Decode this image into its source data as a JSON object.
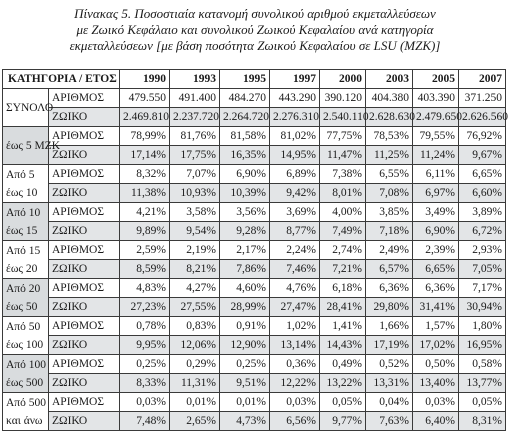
{
  "caption": {
    "line1": "Πίνακας 5. Ποσοστιαία κατανομή συνολικού αριθμού εκμεταλλεύσεων",
    "line2": "με Ζωικό Κεφάλαιο και συνολικού Ζωικού Κεφαλαίου ανά κατηγορία",
    "line3": "εκμεταλλεύσεων [με βάση ποσότητα Ζωικού Κεφαλαίου σε LSU (ΜΖΚ)]"
  },
  "table": {
    "header": [
      "ΚΑΤΗΓΟΡΙΑ / ΕΤΟΣ",
      "1990",
      "1993",
      "1995",
      "1997",
      "2000",
      "2003",
      "2005",
      "2007"
    ],
    "groups": [
      {
        "category": [
          "ΣΥΝΟΛΟ"
        ],
        "shade": false,
        "rows": [
          {
            "label": "ΑΡΙΘΜΟΣ",
            "values": [
              "479.550",
              "491.400",
              "484.270",
              "443.290",
              "390.120",
              "404.380",
              "403.390",
              "371.250"
            ]
          },
          {
            "label": "ΖΩΙΚΟ",
            "values": [
              "2.469.810",
              "2.237.720",
              "2.264.720",
              "2.276.310",
              "2.540.110",
              "2.628.630",
              "2.479.650",
              "2.626.560"
            ]
          }
        ]
      },
      {
        "category": [
          "έως 5 ΜΖΚ"
        ],
        "shade": true,
        "rows": [
          {
            "label": "ΑΡΙΘΜΟΣ",
            "values": [
              "78,99%",
              "81,76%",
              "81,58%",
              "81,02%",
              "77,75%",
              "78,53%",
              "79,55%",
              "76,92%"
            ]
          },
          {
            "label": "ΖΩΙΚΟ",
            "values": [
              "17,14%",
              "17,75%",
              "16,35%",
              "14,95%",
              "11,47%",
              "11,25%",
              "11,24%",
              "9,67%"
            ]
          }
        ]
      },
      {
        "category": [
          "Από 5",
          "έως 10"
        ],
        "shade": false,
        "rows": [
          {
            "label": "ΑΡΙΘΜΟΣ",
            "values": [
              "8,32%",
              "7,07%",
              "6,90%",
              "6,89%",
              "7,38%",
              "6,55%",
              "6,11%",
              "6,65%"
            ]
          },
          {
            "label": "ΖΩΙΚΟ",
            "values": [
              "11,38%",
              "10,93%",
              "10,39%",
              "9,42%",
              "8,01%",
              "7,08%",
              "6,97%",
              "6,60%"
            ]
          }
        ]
      },
      {
        "category": [
          "Από 10",
          "έως 15"
        ],
        "shade": true,
        "rows": [
          {
            "label": "ΑΡΙΘΜΟΣ",
            "values": [
              "4,21%",
              "3,58%",
              "3,56%",
              "3,69%",
              "4,00%",
              "3,85%",
              "3,49%",
              "3,89%"
            ]
          },
          {
            "label": "ΖΩΙΚΟ",
            "values": [
              "9,89%",
              "9,54%",
              "9,28%",
              "8,77%",
              "7,49%",
              "7,18%",
              "6,90%",
              "6,72%"
            ]
          }
        ]
      },
      {
        "category": [
          "Από 15",
          "έως 20"
        ],
        "shade": false,
        "rows": [
          {
            "label": "ΑΡΙΘΜΟΣ",
            "values": [
              "2,59%",
              "2,19%",
              "2,17%",
              "2,24%",
              "2,74%",
              "2,49%",
              "2,39%",
              "2,93%"
            ]
          },
          {
            "label": "ΖΩΙΚΟ",
            "values": [
              "8,59%",
              "8,21%",
              "7,86%",
              "7,46%",
              "7,21%",
              "6,57%",
              "6,65%",
              "7,05%"
            ]
          }
        ]
      },
      {
        "category": [
          "Από 20",
          "έως 50"
        ],
        "shade": true,
        "rows": [
          {
            "label": "ΑΡΙΘΜΟΣ",
            "values": [
              "4,83%",
              "4,27%",
              "4,60%",
              "4,76%",
              "6,18%",
              "6,36%",
              "6,36%",
              "7,17%"
            ]
          },
          {
            "label": "ΖΩΙΚΟ",
            "values": [
              "27,23%",
              "27,55%",
              "28,99%",
              "27,47%",
              "28,41%",
              "29,80%",
              "31,41%",
              "30,94%"
            ]
          }
        ]
      },
      {
        "category": [
          "Από 50",
          "έως 100"
        ],
        "shade": false,
        "rows": [
          {
            "label": "ΑΡΙΘΜΟΣ",
            "values": [
              "0,78%",
              "0,83%",
              "0,91%",
              "1,02%",
              "1,41%",
              "1,66%",
              "1,57%",
              "1,80%"
            ]
          },
          {
            "label": "ΖΩΙΚΟ",
            "values": [
              "9,95%",
              "12,06%",
              "12,90%",
              "13,14%",
              "14,43%",
              "17,19%",
              "17,02%",
              "16,95%"
            ]
          }
        ]
      },
      {
        "category": [
          "Από 100",
          "έως 500"
        ],
        "shade": true,
        "rows": [
          {
            "label": "ΑΡΙΘΜΟΣ",
            "values": [
              "0,25%",
              "0,29%",
              "0,25%",
              "0,36%",
              "0,49%",
              "0,52%",
              "0,50%",
              "0,58%"
            ]
          },
          {
            "label": "ΖΩΙΚΟ",
            "values": [
              "8,33%",
              "11,31%",
              "9,51%",
              "12,22%",
              "13,22%",
              "13,31%",
              "13,40%",
              "13,77%"
            ]
          }
        ]
      },
      {
        "category": [
          "Από 500",
          "και άνω"
        ],
        "shade": false,
        "rows": [
          {
            "label": "ΑΡΙΘΜΟΣ",
            "values": [
              "0,03%",
              "0,01%",
              "0,01%",
              "0,03%",
              "0,05%",
              "0,04%",
              "0,03%",
              "0,05%"
            ]
          },
          {
            "label": "ΖΩΙΚΟ",
            "values": [
              "7,48%",
              "2,65%",
              "4,73%",
              "6,56%",
              "9,77%",
              "7,63%",
              "6,40%",
              "8,31%"
            ]
          }
        ]
      }
    ]
  }
}
